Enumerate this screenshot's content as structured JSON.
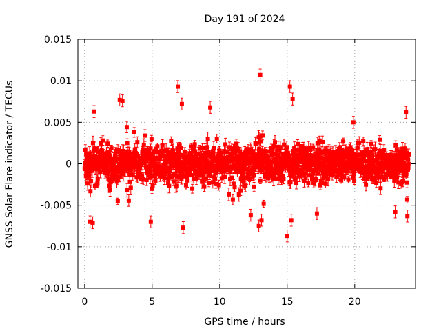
{
  "chart_data": {
    "type": "scatter",
    "title": "Day 191 of 2024",
    "xlabel": "GPS time / hours",
    "ylabel": "GNSS Solar Flare indicator / TECUs",
    "xlim": [
      -0.5,
      24.5
    ],
    "ylim": [
      -0.015,
      0.015
    ],
    "grid": true,
    "x_ticks": [
      0,
      5,
      10,
      15,
      20
    ],
    "x_tick_labels": [
      "0",
      "5",
      "10",
      "15",
      "20"
    ],
    "y_ticks": [
      -0.015,
      -0.01,
      -0.005,
      0,
      0.005,
      0.01,
      0.015
    ],
    "y_tick_labels": [
      "-0.015",
      "-0.01",
      "-0.005",
      "0",
      "0.005",
      "0.01",
      "0.015"
    ],
    "series": [
      {
        "color": "#ff0000",
        "marker": "square",
        "error_bars": true,
        "x_range": [
          0,
          24
        ],
        "n_points": 1440,
        "y_typical_range": [
          -0.003,
          0.003
        ],
        "error_typical": 0.0006,
        "outliers": [
          {
            "x": 0.4,
            "y": -0.007
          },
          {
            "x": 0.6,
            "y": -0.0071
          },
          {
            "x": 0.7,
            "y": 0.0063
          },
          {
            "x": 2.6,
            "y": 0.0077
          },
          {
            "x": 2.8,
            "y": 0.0076
          },
          {
            "x": 4.9,
            "y": -0.007
          },
          {
            "x": 6.9,
            "y": 0.0093
          },
          {
            "x": 7.3,
            "y": -0.0077
          },
          {
            "x": 7.2,
            "y": 0.0072
          },
          {
            "x": 9.3,
            "y": 0.0068
          },
          {
            "x": 12.3,
            "y": -0.0062
          },
          {
            "x": 12.9,
            "y": -0.0075
          },
          {
            "x": 13.0,
            "y": 0.0107
          },
          {
            "x": 13.1,
            "y": -0.0068
          },
          {
            "x": 15.0,
            "y": -0.0087
          },
          {
            "x": 15.2,
            "y": 0.0093
          },
          {
            "x": 15.3,
            "y": -0.0068
          },
          {
            "x": 15.4,
            "y": 0.0078
          },
          {
            "x": 17.2,
            "y": -0.006
          },
          {
            "x": 19.9,
            "y": 0.005
          },
          {
            "x": 23.0,
            "y": -0.0058
          },
          {
            "x": 23.8,
            "y": 0.0062
          },
          {
            "x": 23.9,
            "y": -0.0063
          }
        ]
      }
    ]
  }
}
